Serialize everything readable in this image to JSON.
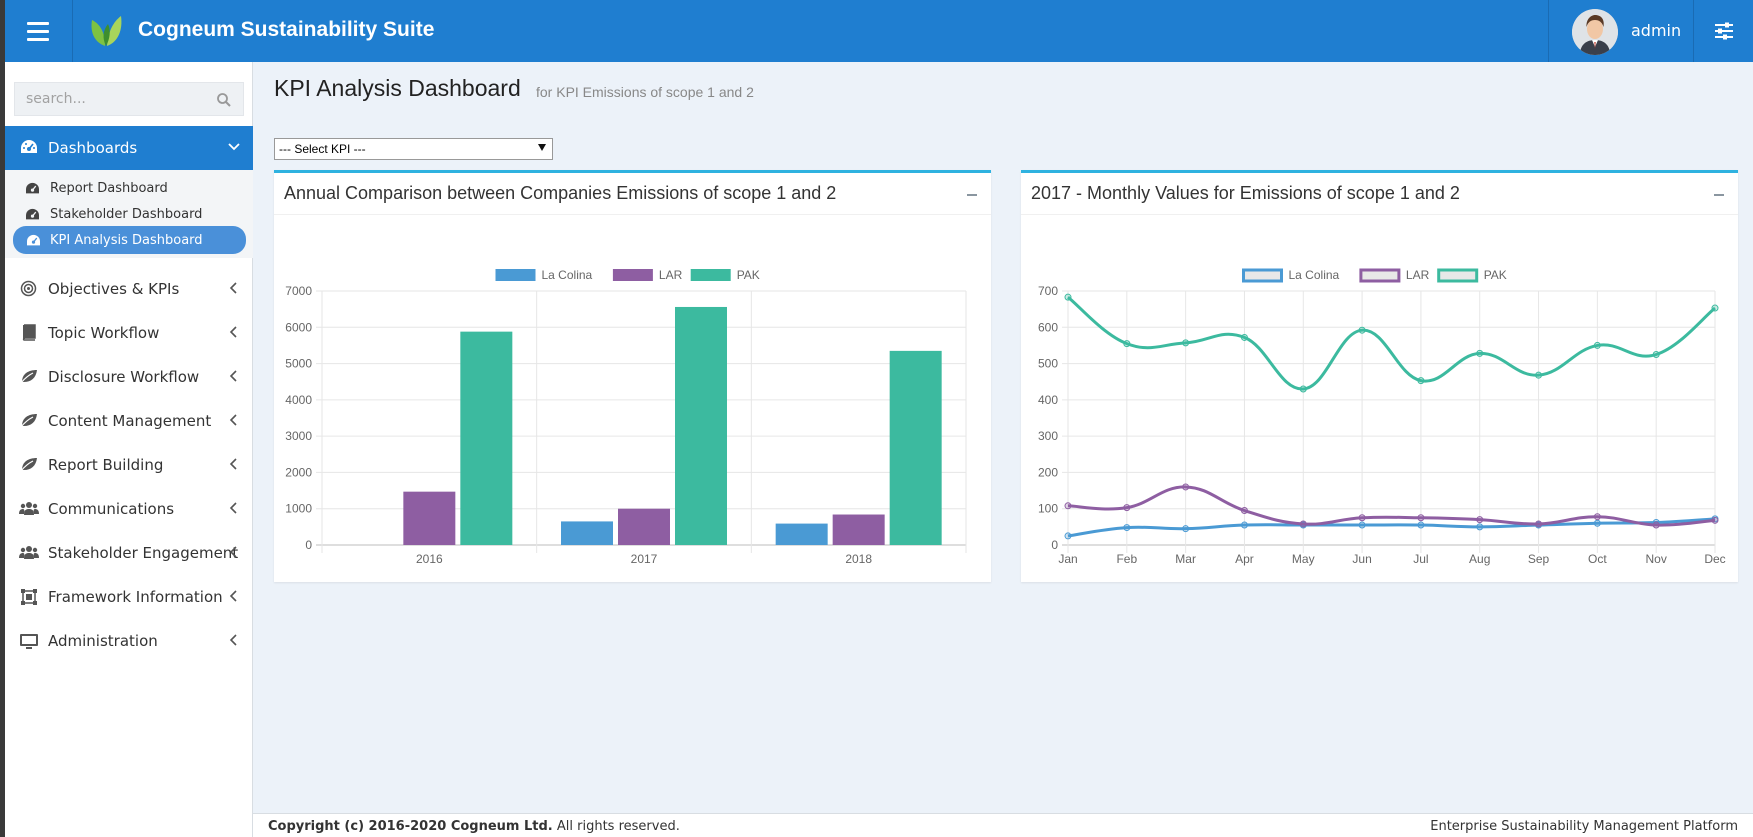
{
  "header": {
    "brand": "Cogneum Sustainability Suite",
    "username": "admin",
    "accent": "#1f7ed0"
  },
  "sidebar": {
    "search_placeholder": "search...",
    "active_menu": {
      "label": "Dashboards",
      "icon": "dashboard-icon"
    },
    "sub_items": [
      {
        "label": "Report Dashboard",
        "icon": "dashboard-icon"
      },
      {
        "label": "Stakeholder Dashboard",
        "icon": "dashboard-icon"
      },
      {
        "label": "KPI Analysis Dashboard",
        "icon": "dashboard-icon",
        "selected": true
      }
    ],
    "items": [
      {
        "label": "Objectives & KPIs",
        "icon": "target-icon"
      },
      {
        "label": "Topic Workflow",
        "icon": "book-icon"
      },
      {
        "label": "Disclosure Workflow",
        "icon": "leaf-icon"
      },
      {
        "label": "Content Management",
        "icon": "leaf-icon"
      },
      {
        "label": "Report Building",
        "icon": "leaf-icon"
      },
      {
        "label": "Communications",
        "icon": "users-icon"
      },
      {
        "label": "Stakeholder Engagement",
        "icon": "users-icon"
      },
      {
        "label": "Framework Information",
        "icon": "framework-icon"
      },
      {
        "label": "Administration",
        "icon": "monitor-icon"
      }
    ]
  },
  "page": {
    "title": "KPI Analysis Dashboard",
    "subtitle": "for KPI Emissions of scope 1 and 2",
    "select_value": "--- Select KPI ---"
  },
  "panels": {
    "annual_title": "Annual Comparison between Companies Emissions of scope 1 and 2",
    "monthly_title": "2017 - Monthly Values for Emissions of scope 1 and 2"
  },
  "footer": {
    "copyright_bold": "Copyright (c) 2016-2020 Cogneum Ltd.",
    "copyright_rest": " All rights reserved.",
    "platform": "Enterprise Sustainability Management Platform"
  },
  "chart_data": [
    {
      "type": "bar",
      "title": "Annual Comparison between Companies Emissions of scope 1 and 2",
      "categories": [
        "2016",
        "2017",
        "2018"
      ],
      "series": [
        {
          "name": "La Colina",
          "values": [
            0,
            650,
            590
          ],
          "color": "#4a9ad4"
        },
        {
          "name": "LAR",
          "values": [
            1470,
            1000,
            840
          ],
          "color": "#8e5ea2"
        },
        {
          "name": "PAK",
          "values": [
            5880,
            6560,
            5350
          ],
          "color": "#3cba9f"
        }
      ],
      "ylim": [
        0,
        7000
      ],
      "yticks": [
        0,
        1000,
        2000,
        3000,
        4000,
        5000,
        6000,
        7000
      ],
      "legend": "top",
      "grid": true
    },
    {
      "type": "line",
      "title": "2017 - Monthly Values for Emissions of scope 1 and 2",
      "categories": [
        "Jan",
        "Feb",
        "Mar",
        "Apr",
        "May",
        "Jun",
        "Jul",
        "Aug",
        "Sep",
        "Oct",
        "Nov",
        "Dec"
      ],
      "series": [
        {
          "name": "La Colina",
          "values": [
            25,
            48,
            45,
            55,
            55,
            55,
            55,
            50,
            55,
            60,
            62,
            72
          ],
          "color": "#4a9ad4"
        },
        {
          "name": "LAR",
          "values": [
            108,
            103,
            160,
            95,
            58,
            75,
            75,
            70,
            58,
            78,
            55,
            68
          ],
          "color": "#8e5ea2"
        },
        {
          "name": "PAK",
          "values": [
            683,
            555,
            557,
            572,
            430,
            592,
            453,
            528,
            468,
            550,
            525,
            653
          ],
          "color": "#3cba9f"
        }
      ],
      "ylim": [
        0,
        700
      ],
      "yticks": [
        0,
        100,
        200,
        300,
        400,
        500,
        600,
        700
      ],
      "legend": "top",
      "grid": true
    }
  ]
}
